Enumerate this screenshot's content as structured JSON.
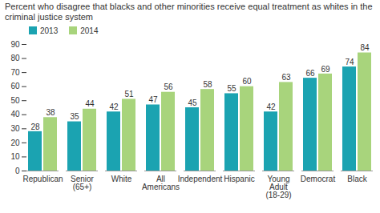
{
  "chart_data": {
    "type": "bar",
    "title": "Percent who disagree that blacks and other minorities receive equal treatment as whites in the criminal justice system",
    "categories": [
      "Republican",
      "Senior\n(65+)",
      "White",
      "All\nAmericans",
      "Independent",
      "Hispanic",
      "Young\nAdult\n(18-29)",
      "Democrat",
      "Black"
    ],
    "series": [
      {
        "name": "2013",
        "color": "#1ba3b1",
        "values": [
          28,
          35,
          42,
          47,
          45,
          55,
          42,
          66,
          74
        ]
      },
      {
        "name": "2014",
        "color": "#a8d47c",
        "values": [
          38,
          44,
          51,
          56,
          58,
          60,
          63,
          69,
          84
        ]
      }
    ],
    "ylim": [
      0,
      90
    ],
    "yticks": [
      0,
      10,
      20,
      30,
      40,
      50,
      60,
      70,
      80,
      90
    ],
    "grid": false,
    "legend": "top-left",
    "data_labels": true
  }
}
